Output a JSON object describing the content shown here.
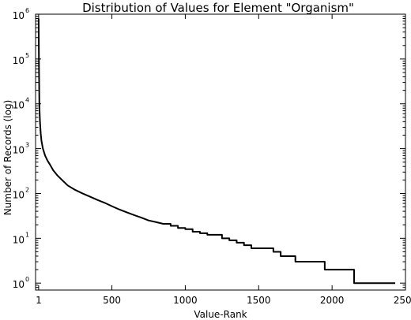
{
  "chart_data": {
    "type": "line",
    "title": "Distribution of Values for Element \"Organism\"",
    "xlabel": "Value-Rank",
    "ylabel": "Number of Records (log)",
    "xlim": [
      -20,
      2500
    ],
    "ylim": [
      0.7,
      1000000
    ],
    "yscale": "log",
    "grid": false,
    "x_ticks": [
      {
        "value": 1,
        "label": "1"
      },
      {
        "value": 500,
        "label": "500"
      },
      {
        "value": 1000,
        "label": "1000"
      },
      {
        "value": 1500,
        "label": "1500"
      },
      {
        "value": 2000,
        "label": "2000"
      },
      {
        "value": 2500,
        "label": "2500"
      }
    ],
    "y_ticks": [
      {
        "value": 1,
        "base": "10",
        "exp": "0"
      },
      {
        "value": 10,
        "base": "10",
        "exp": "1"
      },
      {
        "value": 100,
        "base": "10",
        "exp": "2"
      },
      {
        "value": 1000,
        "base": "10",
        "exp": "3"
      },
      {
        "value": 10000,
        "base": "10",
        "exp": "4"
      },
      {
        "value": 100000,
        "base": "10",
        "exp": "5"
      },
      {
        "value": 1000000,
        "base": "10",
        "exp": "6"
      }
    ],
    "series": [
      {
        "color": "#000000",
        "x": [
          1,
          3,
          6,
          10,
          15,
          20,
          30,
          45,
          60,
          80,
          100,
          130,
          160,
          200,
          250,
          300,
          350,
          400,
          450,
          500,
          550,
          600,
          650,
          700,
          750,
          800,
          850,
          900,
          950,
          1000,
          1050,
          1100,
          1150,
          1200,
          1250,
          1300,
          1350,
          1400,
          1450,
          1500,
          1550,
          1600,
          1650,
          1700,
          1750,
          1800,
          1850,
          1900,
          1950,
          2000,
          2050,
          2100,
          2150,
          2200,
          2300,
          2430
        ],
        "y": [
          800000,
          80000,
          9000,
          4000,
          2200,
          1500,
          1000,
          700,
          550,
          430,
          330,
          250,
          200,
          150,
          120,
          100,
          85,
          72,
          62,
          52,
          44,
          38,
          33,
          29,
          25,
          23,
          21,
          19,
          17,
          16,
          14,
          13,
          12,
          12,
          10,
          9,
          8,
          7,
          6,
          6,
          6,
          5,
          4,
          4,
          3,
          3,
          3,
          3,
          2,
          2,
          2,
          2,
          1,
          1,
          1,
          1
        ]
      }
    ]
  }
}
